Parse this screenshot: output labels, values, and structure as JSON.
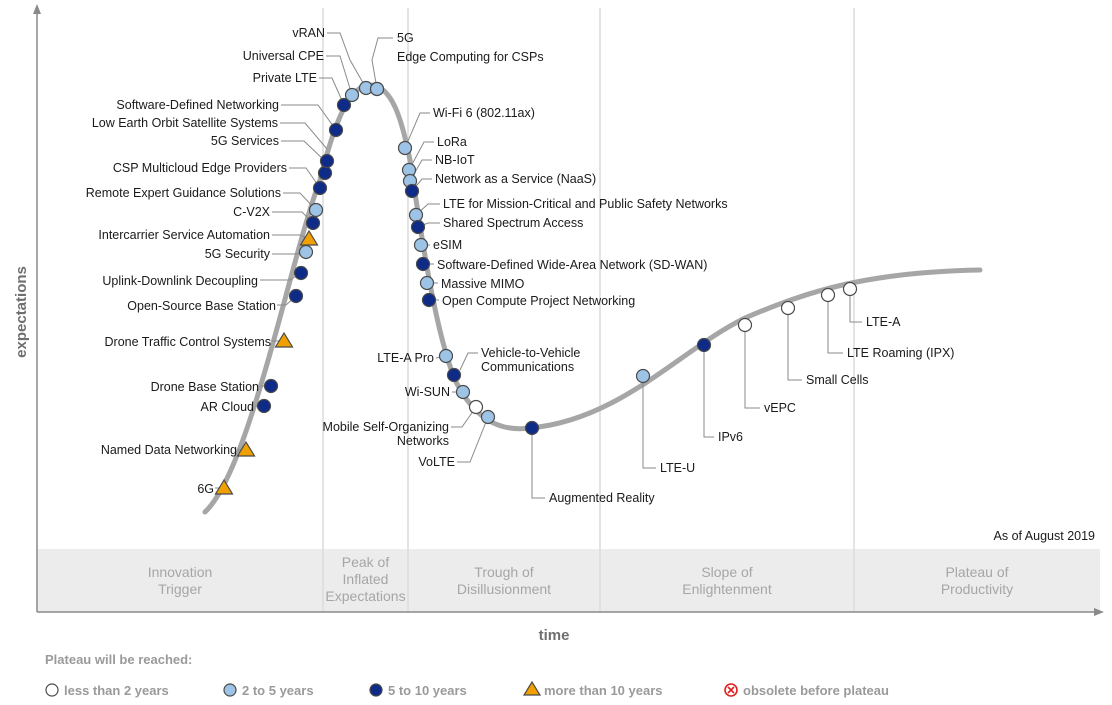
{
  "chart_data": {
    "type": "scatter",
    "title": "",
    "xlabel": "time",
    "ylabel": "expectations",
    "note": "As of August 2019",
    "phases": [
      {
        "name": "Innovation\nTrigger"
      },
      {
        "name": "Peak of\nInflated\nExpectations"
      },
      {
        "name": "Trough of\nDisillusionment"
      },
      {
        "name": "Slope of\nEnlightenment"
      },
      {
        "name": "Plateau of\nProductivity"
      }
    ],
    "legend_title": "Plateau will be reached:",
    "legend": [
      {
        "label": "less than 2 years",
        "marker": "white-circle",
        "color": "#ffffff"
      },
      {
        "label": "2 to 5 years",
        "marker": "light-blue-circle",
        "color": "#9dc3e6"
      },
      {
        "label": "5 to 10 years",
        "marker": "dark-blue-circle",
        "color": "#0d2b87"
      },
      {
        "label": "more than 10 years",
        "marker": "orange-triangle",
        "color": "#f0a000"
      },
      {
        "label": "obsolete before plateau",
        "marker": "red-x-circle",
        "color": "#e02020"
      }
    ],
    "points": [
      {
        "name": "6G",
        "category": "more than 10 years"
      },
      {
        "name": "Named Data Networking",
        "category": "more than 10 years"
      },
      {
        "name": "AR Cloud",
        "category": "5 to 10 years"
      },
      {
        "name": "Drone Base Station",
        "category": "5 to 10 years"
      },
      {
        "name": "Drone Traffic Control Systems",
        "category": "more than 10 years"
      },
      {
        "name": "Open-Source Base Station",
        "category": "5 to 10 years"
      },
      {
        "name": "Uplink-Downlink Decoupling",
        "category": "5 to 10 years"
      },
      {
        "name": "5G Security",
        "category": "2 to 5 years"
      },
      {
        "name": "Intercarrier Service Automation",
        "category": "more than 10 years"
      },
      {
        "name": "C-V2X",
        "category": "5 to 10 years"
      },
      {
        "name": "Remote Expert Guidance Solutions",
        "category": "2 to 5 years"
      },
      {
        "name": "CSP Multicloud Edge Providers",
        "category": "5 to 10 years"
      },
      {
        "name": "5G Services",
        "category": "5 to 10 years"
      },
      {
        "name": "Low Earth Orbit Satellite Systems",
        "category": "5 to 10 years"
      },
      {
        "name": "Software-Defined Networking",
        "category": "5 to 10 years"
      },
      {
        "name": "Private LTE",
        "category": "5 to 10 years"
      },
      {
        "name": "Universal CPE",
        "category": "2 to 5 years"
      },
      {
        "name": "vRAN",
        "category": "2 to 5 years"
      },
      {
        "name": "5G",
        "category": "2 to 5 years"
      },
      {
        "name": "Edge Computing for CSPs",
        "category": "2 to 5 years"
      },
      {
        "name": "Wi-Fi 6 (802.11ax)",
        "category": "2 to 5 years"
      },
      {
        "name": "LoRa",
        "category": "2 to 5 years"
      },
      {
        "name": "NB-IoT",
        "category": "2 to 5 years"
      },
      {
        "name": "Network as a Service (NaaS)",
        "category": "5 to 10 years"
      },
      {
        "name": "LTE for Mission-Critical and Public Safety Networks",
        "category": "2 to 5 years"
      },
      {
        "name": "Shared Spectrum Access",
        "category": "5 to 10 years"
      },
      {
        "name": "eSIM",
        "category": "2 to 5 years"
      },
      {
        "name": "Software-Defined Wide-Area Network (SD-WAN)",
        "category": "5 to 10 years"
      },
      {
        "name": "Massive MIMO",
        "category": "2 to 5 years"
      },
      {
        "name": "Open Compute Project Networking",
        "category": "5 to 10 years"
      },
      {
        "name": "LTE-A Pro",
        "category": "2 to 5 years"
      },
      {
        "name": "Vehicle-to-Vehicle\nCommunications",
        "category": "5 to 10 years"
      },
      {
        "name": "Wi-SUN",
        "category": "2 to 5 years"
      },
      {
        "name": "Mobile Self-Organizing\nNetworks",
        "category": "less than 2 years"
      },
      {
        "name": "VoLTE",
        "category": "2 to 5 years"
      },
      {
        "name": "Augmented Reality",
        "category": "5 to 10 years"
      },
      {
        "name": "LTE-U",
        "category": "2 to 5 years"
      },
      {
        "name": "IPv6",
        "category": "5 to 10 years"
      },
      {
        "name": "vEPC",
        "category": "less than 2 years"
      },
      {
        "name": "Small Cells",
        "category": "less than 2 years"
      },
      {
        "name": "LTE Roaming (IPX)",
        "category": "less than 2 years"
      },
      {
        "name": "LTE-A",
        "category": "less than 2 years"
      }
    ]
  }
}
